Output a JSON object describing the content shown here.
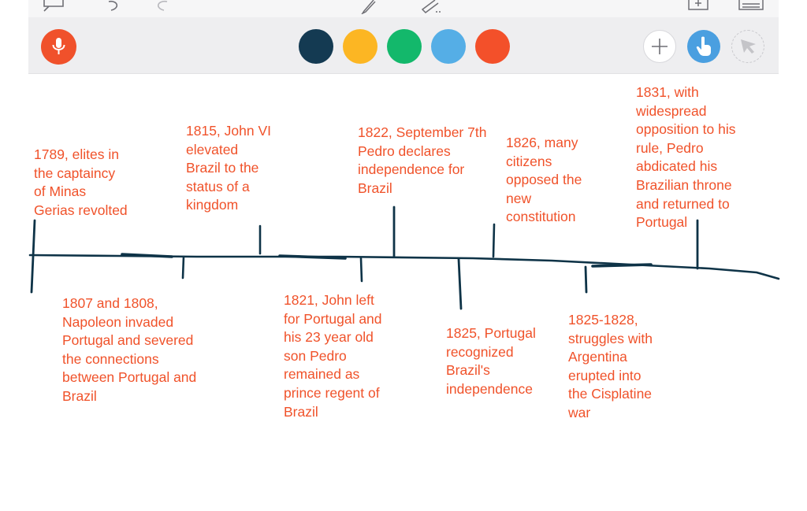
{
  "toolbar": {
    "top_icons": [
      "back-icon",
      "undo-icon",
      "redo-icon",
      "pen-icon",
      "eraser-icon",
      "add-page-icon",
      "page-list-icon"
    ],
    "mic": {
      "icon": "microphone-icon",
      "color": "#f0512b"
    },
    "colors": [
      "#143a52",
      "#fcb623",
      "#13b86b",
      "#55aee6",
      "#f3502a"
    ],
    "right_buttons": {
      "add": "plus-icon",
      "touch": "hand-pointer-icon",
      "pointer": "laser-pointer-icon",
      "touch_color": "#4a9fe0"
    }
  },
  "ink_color": "#0e3347",
  "text_color": "#f0522a",
  "timeline": {
    "events_above": [
      "1789, elites in\nthe captaincy\nof Minas\nGerias revolted",
      "1815, John VI\nelevated\nBrazil to the\nstatus of a\nkingdom",
      "1822, September 7th\nPedro declares\nindependence for\nBrazil",
      "1826, many\ncitizens\nopposed the\nnew\nconstitution",
      "1831, with\nwidespread\nopposition to his\nrule, Pedro\nabdicated his\nBrazilian throne\nand returned to\nPortugal"
    ],
    "events_below": [
      "1807 and 1808,\nNapoleon invaded\nPortugal and severed\nthe connections\nbetween Portugal and\nBrazil",
      "1821, John left\nfor Portugal and\nhis 23 year old\nson Pedro\nremained as\nprince regent of\nBrazil",
      "1825, Portugal\nrecognized\nBrazil's\nindependence",
      "1825-1828,\nstruggles with\nArgentina\nerupted into\nthe Cisplatine\nwar"
    ]
  }
}
